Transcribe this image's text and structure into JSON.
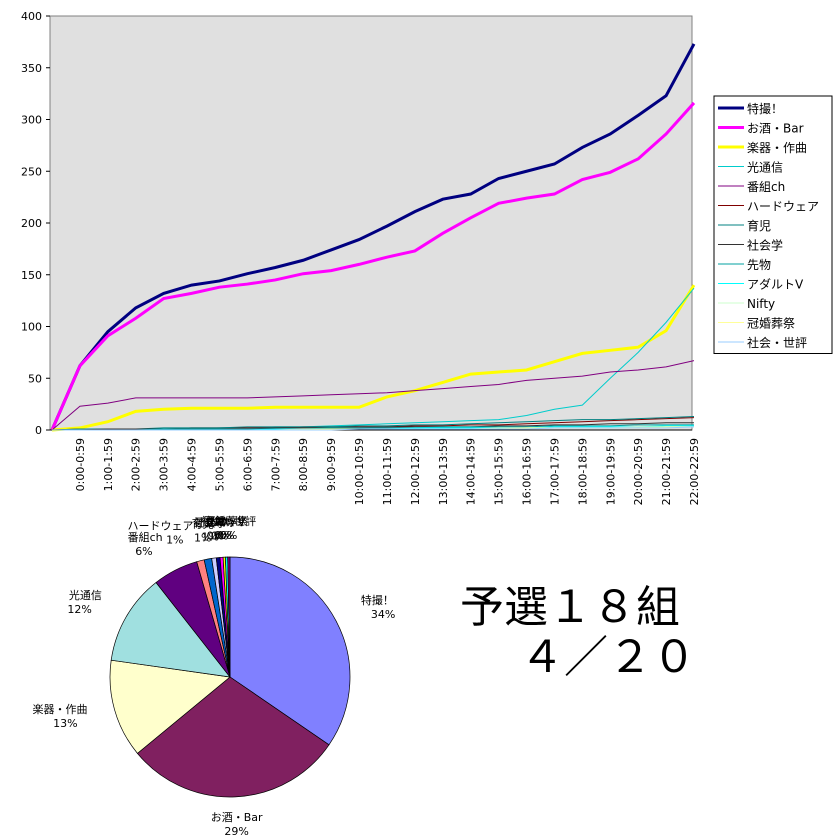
{
  "caption": [
    "予選１８組",
    "４／２０"
  ],
  "chart_data": [
    {
      "type": "line",
      "categories": [
        null,
        "0:00-0:59",
        "1:00-1:59",
        "2:00-2:59",
        "3:00-3:59",
        "4:00-4:59",
        "5:00-5:59",
        "6:00-6:59",
        "7:00-7:59",
        "8:00-8:59",
        "9:00-9:59",
        "10:00-10:59",
        "11:00-11:59",
        "12:00-12:59",
        "13:00-13:59",
        "14:00-14:59",
        "15:00-15:59",
        "16:00-16:59",
        "17:00-17:59",
        "18:00-18:59",
        "19:00-19:59",
        "20:00-20:59",
        "21:00-21:59",
        "22:00-22:59"
      ],
      "ylim": [
        0,
        400
      ],
      "yticks": [
        0,
        50,
        100,
        150,
        200,
        250,
        300,
        350,
        400
      ],
      "grid": false,
      "legend": "right",
      "background": "#e0e0e0",
      "series": [
        {
          "name": "特撮！",
          "color": "#000080",
          "width": 3,
          "values": [
            0,
            62,
            95,
            118,
            132,
            140,
            144,
            151,
            157,
            164,
            174,
            184,
            197,
            211,
            223,
            228,
            243,
            250,
            257,
            273,
            286,
            304,
            323,
            373
          ]
        },
        {
          "name": "お酒・Bar",
          "color": "#ff00ff",
          "width": 3,
          "values": [
            0,
            62,
            91,
            108,
            127,
            132,
            138,
            141,
            145,
            151,
            154,
            160,
            167,
            173,
            190,
            205,
            219,
            224,
            228,
            242,
            249,
            262,
            286,
            316
          ]
        },
        {
          "name": "楽器・作曲",
          "color": "#ffff00",
          "width": 3,
          "values": [
            0,
            2,
            8,
            18,
            20,
            21,
            21,
            21,
            22,
            22,
            22,
            22,
            32,
            38,
            46,
            54,
            56,
            58,
            66,
            74,
            77,
            80,
            96,
            140
          ]
        },
        {
          "name": "光通信",
          "color": "#00cccc",
          "width": 1,
          "values": [
            0,
            0,
            0,
            1,
            1,
            1,
            2,
            2,
            3,
            3,
            4,
            5,
            6,
            7,
            8,
            9,
            10,
            14,
            20,
            24,
            50,
            75,
            104,
            137
          ]
        },
        {
          "name": "番組ch",
          "color": "#800080",
          "width": 1,
          "values": [
            0,
            23,
            26,
            31,
            31,
            31,
            31,
            31,
            32,
            33,
            34,
            35,
            36,
            38,
            40,
            42,
            44,
            48,
            50,
            52,
            56,
            58,
            61,
            67
          ]
        },
        {
          "name": "ハードウェア",
          "color": "#800000",
          "width": 1,
          "values": [
            0,
            1,
            1,
            1,
            1,
            2,
            2,
            2,
            2,
            3,
            3,
            3,
            3,
            4,
            4,
            5,
            5,
            6,
            7,
            8,
            9,
            10,
            11,
            12
          ]
        },
        {
          "name": "育児",
          "color": "#008080",
          "width": 1,
          "values": [
            0,
            1,
            1,
            1,
            2,
            2,
            2,
            3,
            3,
            3,
            3,
            4,
            4,
            5,
            5,
            6,
            7,
            8,
            9,
            10,
            10,
            11,
            12,
            13
          ]
        },
        {
          "name": "社会学",
          "color": "#333333",
          "width": 1,
          "values": [
            0,
            0,
            1,
            1,
            1,
            1,
            1,
            1,
            2,
            2,
            2,
            2,
            3,
            3,
            3,
            3,
            4,
            4,
            5,
            5,
            6,
            6,
            7,
            7
          ]
        },
        {
          "name": "先物",
          "color": "#00a0a0",
          "width": 1,
          "values": [
            0,
            0,
            0,
            0,
            1,
            1,
            1,
            1,
            1,
            1,
            2,
            2,
            2,
            2,
            3,
            3,
            3,
            3,
            4,
            4,
            4,
            5,
            5,
            5
          ]
        },
        {
          "name": "アダルトV",
          "color": "#00ffff",
          "width": 1,
          "values": [
            0,
            0,
            0,
            0,
            0,
            0,
            0,
            0,
            1,
            1,
            1,
            1,
            1,
            2,
            2,
            2,
            2,
            2,
            3,
            3,
            3,
            3,
            4,
            4
          ]
        },
        {
          "name": "Nifty",
          "color": "#ccffcc",
          "width": 1,
          "values": [
            0,
            0,
            0,
            0,
            0,
            0,
            0,
            0,
            0,
            1,
            1,
            1,
            1,
            1,
            1,
            1,
            2,
            2,
            2,
            2,
            2,
            3,
            3,
            3
          ]
        },
        {
          "name": "冠婚葬祭",
          "color": "#ffff99",
          "width": 1,
          "values": [
            0,
            0,
            0,
            0,
            0,
            0,
            0,
            0,
            0,
            0,
            1,
            1,
            1,
            1,
            1,
            1,
            1,
            2,
            2,
            2,
            2,
            2,
            3,
            3
          ]
        },
        {
          "name": "社会・世評",
          "color": "#99ccff",
          "width": 1,
          "values": [
            0,
            0,
            0,
            0,
            0,
            0,
            0,
            0,
            0,
            0,
            0,
            1,
            1,
            1,
            1,
            1,
            1,
            1,
            2,
            2,
            2,
            2,
            2,
            3
          ]
        }
      ]
    },
    {
      "type": "pie",
      "categories": [
        "特撮！",
        "お酒・Bar",
        "楽器・作曲",
        "光通信",
        "番組ch",
        "ハードウェア",
        "育児",
        "社会学",
        "先物",
        "アダルトV",
        "Nifty",
        "冠婚葬祭",
        "社会・世評"
      ],
      "values": [
        34,
        29,
        13,
        12,
        6,
        1,
        1,
        0.6,
        0.5,
        0.4,
        0.3,
        0.3,
        0.3
      ],
      "value_labels": [
        "34%",
        "29%",
        "13%",
        "12%",
        "6%",
        "1%",
        "1%",
        "1%",
        "0%",
        "0%",
        "0%",
        "0%",
        "0%"
      ],
      "colors": [
        "#8080ff",
        "#802060",
        "#ffffcc",
        "#a0e0e0",
        "#600080",
        "#ff8080",
        "#0066cc",
        "#ccccff",
        "#000080",
        "#ff00ff",
        "#ffff00",
        "#00ffff",
        "#800080"
      ]
    }
  ]
}
